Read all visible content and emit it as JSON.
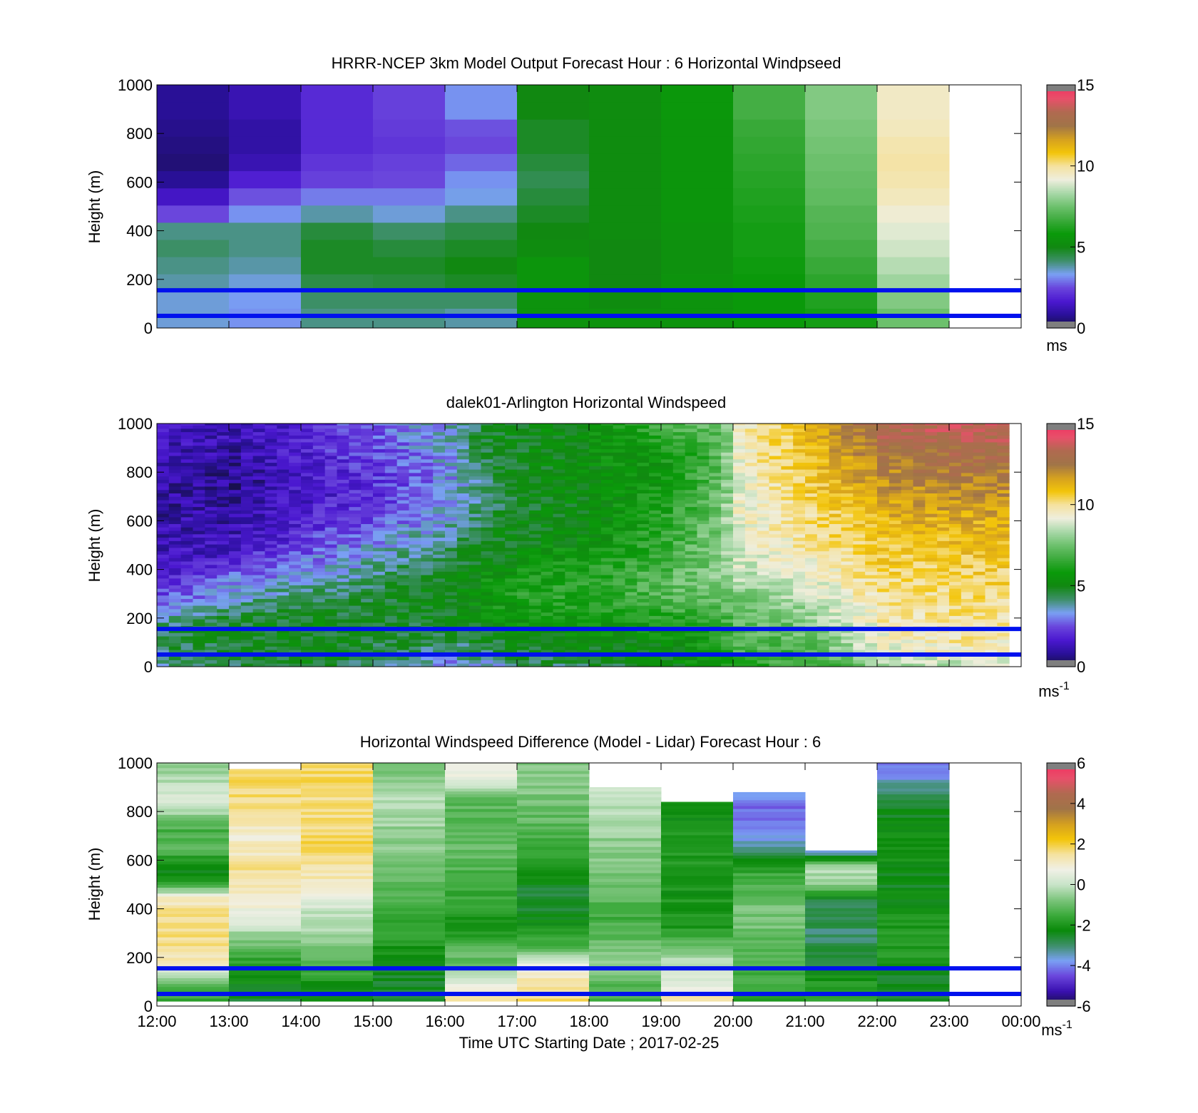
{
  "figure": {
    "xlabel": "Time UTC  Starting Date ; 2017-02-25",
    "x_ticks": [
      "12:00",
      "13:00",
      "14:00",
      "15:00",
      "16:00",
      "17:00",
      "18:00",
      "19:00",
      "20:00",
      "21:00",
      "22:00",
      "23:00",
      "00:00"
    ]
  },
  "colors": {
    "overlay_lines": "#0011ee",
    "colormap_speed": [
      "#151040",
      "#2a109a",
      "#4b18d0",
      "#6a46dc",
      "#7aa0f4",
      "#3e8f6a",
      "#118811",
      "#0a9a0a",
      "#3caa3c",
      "#6cc06c",
      "#a8d8a8",
      "#eeeedd",
      "#f5e2a0",
      "#f3c50a",
      "#d4a020",
      "#a07448",
      "#b06a50",
      "#e8506a",
      "#f03060"
    ],
    "colormap_diff": [
      "#151040",
      "#3a10b0",
      "#6a46dc",
      "#7aa0f4",
      "#3e8f6a",
      "#0a8a0a",
      "#3caa3c",
      "#7cc47c",
      "#c8e4c8",
      "#f0f0e6",
      "#f5e2a0",
      "#f3c50a",
      "#d4a020",
      "#a07448",
      "#b06a50",
      "#e8506a",
      "#f03060"
    ]
  },
  "chart_data": [
    {
      "type": "heatmap",
      "title": "HRRR-NCEP 3km Model Output   Forecast Hour : 6 Horizontal Windpseed",
      "ylabel": "Height (m)",
      "ylim": [
        0,
        1000
      ],
      "y_ticks": [
        "0",
        "200",
        "400",
        "600",
        "800",
        "1000"
      ],
      "xlim": [
        "12:00",
        "00:00"
      ],
      "colorbar": {
        "range": [
          0,
          15
        ],
        "ticks": [
          "0",
          "5",
          "10",
          "15"
        ],
        "unit": "ms"
      },
      "overlay_lines_height_m": [
        50,
        155
      ],
      "profiles": [
        {
          "time": "12:00",
          "windspeed_ms": [
            3.5,
            3.5,
            3.8,
            4.0,
            4.2,
            4.0,
            2.5,
            1.5,
            0.8,
            0.5,
            0.6,
            0.7,
            0.8,
            0.8
          ]
        },
        {
          "time": "13:00",
          "windspeed_ms": [
            3.2,
            3.3,
            3.5,
            3.8,
            4.0,
            4.0,
            3.2,
            2.6,
            1.8,
            1.2,
            1.0,
            1.0,
            1.2,
            1.2
          ]
        },
        {
          "time": "14:00",
          "windspeed_ms": [
            4.0,
            4.2,
            4.5,
            4.8,
            4.8,
            4.6,
            3.8,
            3.0,
            2.4,
            2.2,
            2.0,
            2.0,
            2.0,
            2.0
          ]
        },
        {
          "time": "15:00",
          "windspeed_ms": [
            4.0,
            4.2,
            4.6,
            4.8,
            4.6,
            4.2,
            3.5,
            3.0,
            2.5,
            2.4,
            2.2,
            2.3,
            2.4,
            2.4
          ]
        },
        {
          "time": "16:00",
          "windspeed_ms": [
            3.8,
            4.2,
            4.8,
            5.0,
            4.8,
            4.5,
            4.0,
            3.4,
            3.2,
            2.8,
            2.5,
            2.6,
            3.2,
            3.2
          ]
        },
        {
          "time": "17:00",
          "windspeed_ms": [
            5.5,
            5.5,
            5.6,
            5.6,
            5.2,
            5.0,
            4.8,
            4.6,
            4.4,
            4.6,
            4.8,
            4.8,
            5.0,
            5.0
          ]
        },
        {
          "time": "18:00",
          "windspeed_ms": [
            5.5,
            5.2,
            5.0,
            5.0,
            5.0,
            5.2,
            5.2,
            5.2,
            5.2,
            5.2,
            5.2,
            5.2,
            5.2,
            5.2
          ]
        },
        {
          "time": "19:00",
          "windspeed_ms": [
            5.5,
            5.5,
            5.5,
            5.4,
            5.4,
            5.5,
            5.6,
            5.6,
            5.6,
            5.6,
            5.6,
            5.6,
            5.7,
            5.7
          ]
        },
        {
          "time": "20:00",
          "windspeed_ms": [
            5.8,
            5.8,
            5.8,
            5.9,
            6.0,
            6.0,
            6.1,
            6.2,
            6.3,
            6.4,
            6.5,
            6.6,
            6.8,
            6.8
          ]
        },
        {
          "time": "21:00",
          "windspeed_ms": [
            6.0,
            6.2,
            6.4,
            6.6,
            6.8,
            7.0,
            7.1,
            7.3,
            7.4,
            7.5,
            7.6,
            7.7,
            7.8,
            7.8
          ]
        },
        {
          "time": "22:00",
          "windspeed_ms": [
            7.5,
            7.8,
            8.2,
            8.5,
            8.8,
            9.0,
            9.3,
            9.6,
            9.8,
            9.9,
            9.8,
            9.6,
            9.5,
            9.5
          ]
        }
      ]
    },
    {
      "type": "heatmap",
      "title": "dalek01-Arlington  Horizontal Windspeed",
      "ylabel": "Height (m)",
      "ylim": [
        0,
        1000
      ],
      "y_ticks": [
        "0",
        "200",
        "400",
        "600",
        "800",
        "1000"
      ],
      "xlim": [
        "12:00",
        "00:00"
      ],
      "colorbar": {
        "range": [
          0,
          15
        ],
        "ticks": [
          "0",
          "5",
          "10",
          "15"
        ],
        "unit": "ms",
        "unit_superscript": "-1"
      },
      "overlay_lines_height_m": [
        50,
        155
      ],
      "keyframes": [
        {
          "time": "12:00",
          "windspeed_ms": [
            4.0,
            4.2,
            4.5,
            3.5,
            2.5,
            2.0,
            1.5,
            1.2,
            1.2,
            1.0,
            1.0,
            1.0,
            1.2,
            1.4,
            1.6
          ]
        },
        {
          "time": "13:00",
          "windspeed_ms": [
            4.5,
            4.8,
            5.0,
            4.5,
            3.6,
            3.0,
            2.0,
            1.5,
            1.2,
            1.0,
            0.8,
            0.8,
            1.0,
            1.2,
            1.2
          ]
        },
        {
          "time": "14:00",
          "windspeed_ms": [
            4.8,
            5.0,
            5.0,
            4.8,
            4.3,
            3.6,
            3.0,
            2.4,
            2.0,
            1.8,
            1.6,
            1.6,
            1.8,
            2.0,
            2.0
          ]
        },
        {
          "time": "15:00",
          "windspeed_ms": [
            4.2,
            4.6,
            4.8,
            4.8,
            4.6,
            4.2,
            3.8,
            3.4,
            2.8,
            2.4,
            2.2,
            2.2,
            2.4,
            2.6,
            2.8
          ]
        },
        {
          "time": "16:00",
          "windspeed_ms": [
            3.0,
            4.0,
            4.6,
            5.0,
            5.2,
            5.0,
            4.6,
            4.2,
            3.8,
            3.4,
            3.2,
            3.2,
            3.4,
            3.6,
            3.6
          ]
        },
        {
          "time": "16:30",
          "windspeed_ms": [
            3.5,
            4.5,
            5.0,
            5.5,
            5.8,
            5.6,
            5.2,
            4.8,
            4.6,
            4.4,
            4.2,
            4.4,
            4.6,
            4.8,
            5.0
          ]
        },
        {
          "time": "17:00",
          "windspeed_ms": [
            4.0,
            4.8,
            5.2,
            5.8,
            6.2,
            6.0,
            5.6,
            5.2,
            5.0,
            4.9,
            4.9,
            5.0,
            5.0,
            5.0,
            5.1
          ]
        },
        {
          "time": "18:00",
          "windspeed_ms": [
            4.5,
            5.0,
            5.4,
            6.0,
            6.4,
            6.4,
            6.0,
            5.6,
            5.4,
            5.3,
            5.3,
            5.3,
            5.4,
            5.4,
            5.6
          ]
        },
        {
          "time": "19:00",
          "windspeed_ms": [
            5.0,
            5.2,
            5.6,
            6.4,
            7.0,
            7.2,
            6.8,
            6.6,
            6.4,
            6.2,
            6.0,
            5.8,
            5.8,
            6.2,
            6.8
          ]
        },
        {
          "time": "19:45",
          "windspeed_ms": [
            6.0,
            6.2,
            6.5,
            7.0,
            7.6,
            7.8,
            7.8,
            7.8,
            7.8,
            7.6,
            7.4,
            7.2,
            7.0,
            7.2,
            7.6
          ]
        },
        {
          "time": "20:00",
          "windspeed_ms": [
            6.5,
            6.8,
            7.0,
            7.2,
            7.8,
            8.4,
            8.8,
            9.0,
            9.2,
            9.2,
            9.2,
            9.2,
            9.3,
            9.4,
            9.4
          ]
        },
        {
          "time": "21:00",
          "windspeed_ms": [
            6.5,
            7.0,
            7.5,
            8.0,
            8.5,
            9.0,
            9.5,
            9.8,
            10.0,
            10.2,
            10.5,
            10.8,
            11.0,
            11.0,
            11.2
          ]
        },
        {
          "time": "22:00",
          "windspeed_ms": [
            8.0,
            9.2,
            9.5,
            9.8,
            10.0,
            10.2,
            10.5,
            10.8,
            11.0,
            11.4,
            11.8,
            12.0,
            12.4,
            13.0,
            13.4
          ]
        },
        {
          "time": "23:00",
          "windspeed_ms": [
            8.5,
            9.6,
            9.8,
            10.0,
            10.2,
            10.4,
            10.6,
            10.9,
            11.2,
            11.6,
            12.0,
            12.4,
            12.8,
            13.2,
            13.6
          ]
        },
        {
          "time": "23:50",
          "windspeed_ms": [
            8.5,
            9.6,
            9.8,
            10.0,
            10.2,
            10.4,
            10.6,
            10.9,
            11.2,
            11.6,
            12.0,
            12.4,
            12.8,
            13.2,
            13.6
          ]
        }
      ]
    },
    {
      "type": "heatmap",
      "title": "Horizontal Windspeed Difference (Model - Lidar) Forecast Hour : 6",
      "ylabel": "Height (m)",
      "ylim": [
        0,
        1000
      ],
      "y_ticks": [
        "0",
        "200",
        "400",
        "600",
        "800",
        "1000"
      ],
      "xlim": [
        "12:00",
        "00:00"
      ],
      "colorbar": {
        "range": [
          -6,
          6
        ],
        "ticks": [
          "-6",
          "-4",
          "-2",
          "0",
          "2",
          "4",
          "6"
        ],
        "unit": "ms",
        "unit_superscript": "-1"
      },
      "overlay_lines_height_m": [
        50,
        155
      ],
      "profiles": [
        {
          "time": "12:00",
          "top_m": 1000,
          "difference_ms": [
            -1.5,
            -1.2,
            1.0,
            1.5,
            1.6,
            1.6,
            1.2,
            -2.0,
            -2.4,
            -1.0,
            -1.5,
            -0.5,
            0.3,
            -0.2,
            -0.6
          ]
        },
        {
          "time": "13:00",
          "top_m": 975,
          "difference_ms": [
            -2.5,
            -2.2,
            -2.0,
            -1.2,
            -0.5,
            0.5,
            0.8,
            1.2,
            1.5,
            1.2,
            1.0,
            1.4,
            1.6,
            1.8,
            1.8
          ]
        },
        {
          "time": "14:00",
          "top_m": 1000,
          "difference_ms": [
            -2.5,
            -2.0,
            -1.5,
            -0.8,
            -0.3,
            -0.2,
            0.5,
            1.2,
            1.5,
            1.8,
            1.8,
            1.6,
            1.6,
            1.8,
            1.8
          ]
        },
        {
          "time": "15:00",
          "top_m": 1000,
          "difference_ms": [
            -2.5,
            -2.6,
            -2.4,
            -2.0,
            -1.8,
            -1.5,
            -1.2,
            -1.0,
            -0.8,
            -0.6,
            -0.5,
            -0.3,
            -0.2,
            -0.5,
            -0.8
          ]
        },
        {
          "time": "16:00",
          "top_m": 1000,
          "difference_ms": [
            1.5,
            0.5,
            -0.8,
            -1.2,
            -1.8,
            -2.0,
            -1.6,
            -1.4,
            -1.2,
            -1.0,
            -1.0,
            -1.2,
            -1.0,
            0.5,
            0.8
          ]
        },
        {
          "time": "17:00",
          "top_m": 1000,
          "difference_ms": [
            1.8,
            1.6,
            0.8,
            -1.0,
            -1.8,
            -2.4,
            -2.6,
            -2.4,
            -2.0,
            -1.6,
            -1.2,
            -1.0,
            -0.8,
            -0.6,
            -0.8
          ]
        },
        {
          "time": "18:00",
          "top_m": 900,
          "difference_ms": [
            -1.5,
            -1.2,
            -0.6,
            -0.8,
            -1.2,
            -1.4,
            -1.2,
            -1.0,
            -0.8,
            -0.6,
            -0.5,
            -0.3,
            -0.2,
            0.3
          ]
        },
        {
          "time": "19:00",
          "top_m": 840,
          "difference_ms": [
            1.5,
            0.5,
            0.0,
            -0.5,
            -1.8,
            -2.0,
            -2.0,
            -2.1,
            -2.0,
            -1.9,
            -2.0,
            -2.2,
            -2.0
          ]
        },
        {
          "time": "20:00",
          "top_m": 880,
          "difference_ms": [
            -1.8,
            -1.6,
            -1.4,
            -1.2,
            -1.0,
            -0.8,
            -0.8,
            -1.2,
            -1.6,
            -2.4,
            -3.6,
            -4.0,
            -4.2,
            -4.0
          ]
        },
        {
          "time": "21:00",
          "top_m": 640,
          "difference_ms": [
            -1.5,
            -1.8,
            -2.5,
            -2.8,
            -3.0,
            -2.8,
            -2.8,
            -0.5,
            -0.2,
            -4.0
          ]
        },
        {
          "time": "22:00",
          "top_m": 1000,
          "difference_ms": [
            -2.4,
            -2.5,
            -2.2,
            -1.8,
            -1.8,
            -2.0,
            -2.2,
            -2.4,
            -2.2,
            -2.0,
            -2.2,
            -2.4,
            -2.8,
            -3.6,
            -4.2
          ]
        }
      ]
    }
  ]
}
